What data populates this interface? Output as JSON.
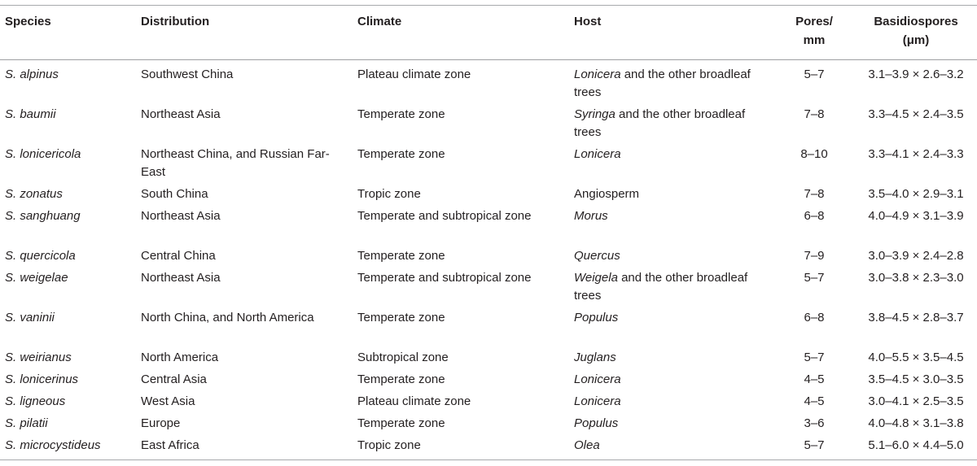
{
  "table": {
    "headers": {
      "species": "Species",
      "distribution": "Distribution",
      "climate": "Climate",
      "host": "Host",
      "pores_line1": "Pores/",
      "pores_line2": "mm",
      "basidio_line1": "Basidiospores",
      "basidio_line2": "(μm)"
    },
    "rows": [
      {
        "species": "S. alpinus",
        "distribution": "Southwest China",
        "climate": "Plateau climate zone",
        "host_genus": "Lonicera",
        "host_rest": " and the other broadleaf trees",
        "pores": "5–7",
        "spores": "3.1–3.9 × 2.6–3.2"
      },
      {
        "species": "S. baumii",
        "distribution": "Northeast Asia",
        "climate": "Temperate zone",
        "host_genus": "Syringa",
        "host_rest": " and the other broadleaf trees",
        "pores": "7–8",
        "spores": "3.3–4.5 × 2.4–3.5"
      },
      {
        "species": "S. lonicericola",
        "distribution": "Northeast China, and Russian Far-East",
        "climate": "Temperate zone",
        "host_genus": "Lonicera",
        "host_rest": "",
        "pores": "8–10",
        "spores": "3.3–4.1 × 2.4–3.3"
      },
      {
        "species": "S. zonatus",
        "distribution": "South China",
        "climate": "Tropic zone",
        "host_genus": "",
        "host_rest": "Angiosperm",
        "pores": "7–8",
        "spores": "3.5–4.0 × 2.9–3.1"
      },
      {
        "species": "S. sanghuang",
        "distribution": "Northeast Asia",
        "climate": "Temperate and subtropical zone",
        "host_genus": "Morus",
        "host_rest": "",
        "pores": "6–8",
        "spores": "4.0–4.9 × 3.1–3.9"
      },
      {
        "species": "S. quercicola",
        "distribution": "Central China",
        "climate": "Temperate zone",
        "host_genus": "Quercus",
        "host_rest": "",
        "pores": "7–9",
        "spores": "3.0–3.9 × 2.4–2.8"
      },
      {
        "species": "S. weigelae",
        "distribution": "Northeast Asia",
        "climate": "Temperate and subtropical zone",
        "host_genus": "Weigela",
        "host_rest": " and the other broadleaf trees",
        "pores": "5–7",
        "spores": "3.0–3.8 × 2.3–3.0"
      },
      {
        "species": "S. vaninii",
        "distribution": "North China, and North America",
        "climate": "Temperate zone",
        "host_genus": "Populus",
        "host_rest": "",
        "pores": "6–8",
        "spores": "3.8–4.5 × 2.8–3.7"
      },
      {
        "species": "S. weirianus",
        "distribution": "North America",
        "climate": "Subtropical zone",
        "host_genus": "Juglans",
        "host_rest": "",
        "pores": "5–7",
        "spores": "4.0–5.5 × 3.5–4.5"
      },
      {
        "species": "S. lonicerinus",
        "distribution": "Central Asia",
        "climate": "Temperate zone",
        "host_genus": "Lonicera",
        "host_rest": "",
        "pores": "4–5",
        "spores": "3.5–4.5 × 3.0–3.5"
      },
      {
        "species": "S. ligneous",
        "distribution": "West Asia",
        "climate": "Plateau climate zone",
        "host_genus": "Lonicera",
        "host_rest": "",
        "pores": "4–5",
        "spores": "3.0–4.1 × 2.5–3.5"
      },
      {
        "species": "S. pilatii",
        "distribution": "Europe",
        "climate": "Temperate zone",
        "host_genus": "Populus",
        "host_rest": "",
        "pores": "3–6",
        "spores": "4.0–4.8 × 3.1–3.8"
      },
      {
        "species": "S. microcystideus",
        "distribution": "East Africa",
        "climate": "Tropic zone",
        "host_genus": "Olea",
        "host_rest": "",
        "pores": "5–7",
        "spores": "5.1–6.0 × 4.4–5.0"
      }
    ]
  }
}
